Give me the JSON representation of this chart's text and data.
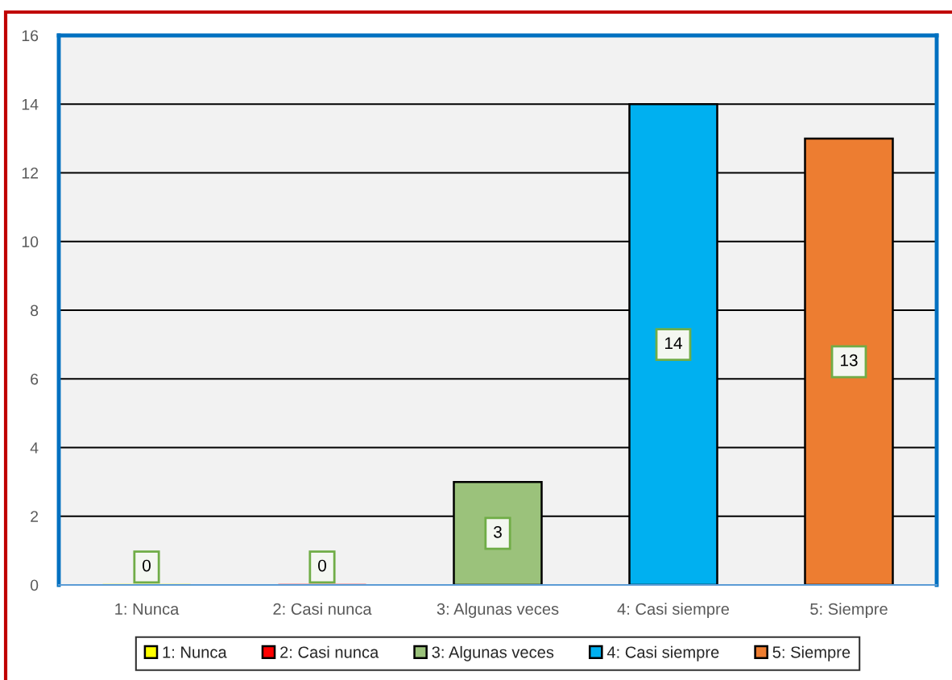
{
  "chart_data": {
    "type": "bar",
    "stacked": true,
    "categories": [
      "1: Nunca",
      "2: Casi nunca",
      "3: Algunas veces",
      "4: Casi siempre",
      "5: Siempre"
    ],
    "series": [
      {
        "name": "1: Nunca",
        "color": "#ffff00",
        "values": [
          0,
          null,
          null,
          null,
          null
        ]
      },
      {
        "name": "2: Casi nunca",
        "color": "#ff0000",
        "values": [
          null,
          0,
          null,
          null,
          null
        ]
      },
      {
        "name": "3: Algunas veces",
        "color": "#9bc27b",
        "values": [
          null,
          null,
          3,
          null,
          null
        ]
      },
      {
        "name": "4: Casi siempre",
        "color": "#00b0f0",
        "values": [
          null,
          null,
          null,
          14,
          null
        ]
      },
      {
        "name": "5: Siempre",
        "color": "#ed7d31",
        "values": [
          null,
          null,
          null,
          null,
          13
        ]
      }
    ],
    "ylim": [
      0,
      16
    ],
    "yticks": [
      0,
      2,
      4,
      6,
      8,
      10,
      12,
      14,
      16
    ],
    "grid": "y",
    "legend": "bottom",
    "data_labels": true
  }
}
